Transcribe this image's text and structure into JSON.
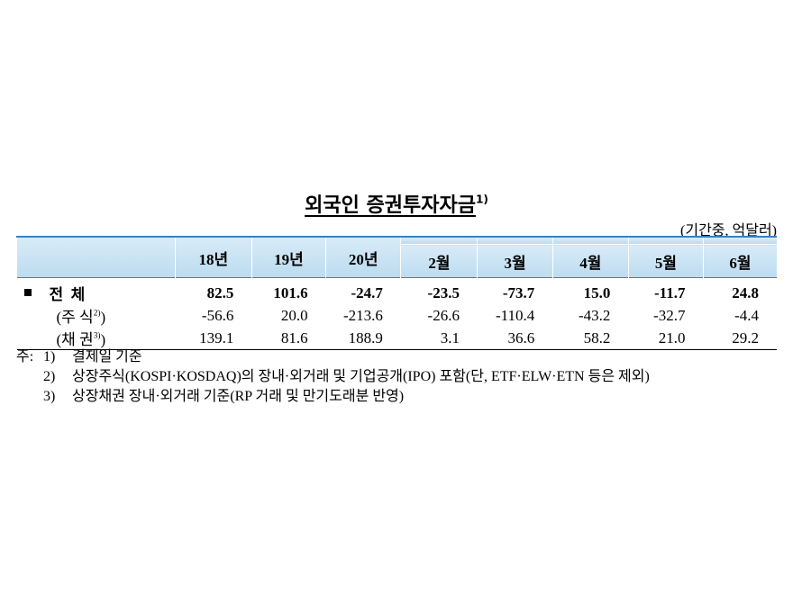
{
  "title": {
    "text": "외국인 증권투자자금",
    "note": "1)"
  },
  "unit": "(기간중, 억달러)",
  "table": {
    "columns": [
      "18년",
      "19년",
      "20년",
      "2월",
      "3월",
      "4월",
      "5월",
      "6월"
    ],
    "rows": [
      {
        "label": {
          "text": "전  체"
        },
        "values": [
          "82.5",
          "101.6",
          "-24.7",
          "-23.5",
          "-73.7",
          "15.0",
          "-11.7",
          "24.8"
        ]
      },
      {
        "label": {
          "text": "(주 식",
          "note": "2)",
          "close": ")"
        },
        "values": [
          "-56.6",
          "20.0",
          "-213.6",
          "-26.6",
          "-110.4",
          "-43.2",
          "-32.7",
          "-4.4"
        ]
      },
      {
        "label": {
          "text": "(채 권",
          "note": "3)",
          "close": ")"
        },
        "values": [
          "139.1",
          "81.6",
          "188.9",
          "3.1",
          "36.6",
          "58.2",
          "21.0",
          "29.2"
        ]
      }
    ]
  },
  "notes": {
    "prefix": "주:",
    "items": [
      {
        "num": "1)",
        "text": "결제일 기준"
      },
      {
        "num": "2)",
        "text": "상장주식(KOSPI·KOSDAQ)의 장내·외거래 및 기업공개(IPO) 포함(단, ETF·ELW·ETN 등은 제외)"
      },
      {
        "num": "3)",
        "text": "상장채권 장내·외거래 기준(RP 거래 및 만기도래분 반영)"
      }
    ]
  }
}
